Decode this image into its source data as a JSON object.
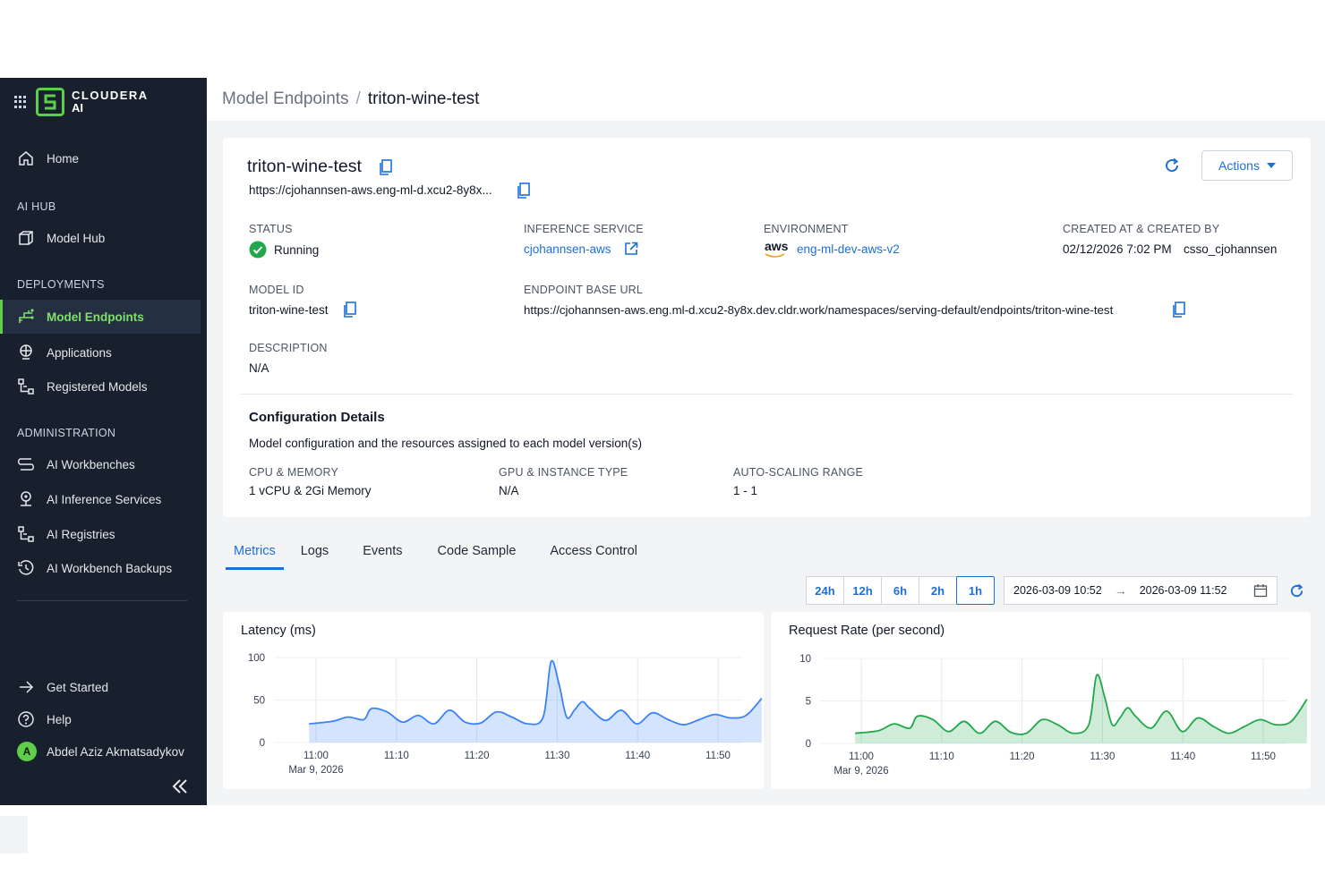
{
  "brand": {
    "line1": "CLOUDERA",
    "line2": "AI"
  },
  "breadcrumb": {
    "parent": "Model Endpoints",
    "separator": "/",
    "current": "triton-wine-test"
  },
  "sidebar": {
    "home": "Home",
    "sections": {
      "ai_hub": "AI HUB",
      "deployments": "DEPLOYMENTS",
      "administration": "ADMINISTRATION"
    },
    "items": {
      "model_hub": "Model Hub",
      "model_endpoints": "Model Endpoints",
      "applications": "Applications",
      "registered_models": "Registered Models",
      "ai_workbenches": "AI Workbenches",
      "ai_inference_services": "AI Inference Services",
      "ai_registries": "AI Registries",
      "ai_workbench_backups": "AI Workbench Backups"
    },
    "footer": {
      "get_started": "Get Started",
      "help": "Help",
      "user_initial": "A",
      "user_name": "Abdel Aziz Akmatsadykov"
    }
  },
  "endpoint": {
    "name": "triton-wine-test",
    "url_short": "https://cjohannsen-aws.eng-ml-d.xcu2-8y8x...",
    "actions_label": "Actions",
    "status_label": "STATUS",
    "status_value": "Running",
    "inference_label": "INFERENCE SERVICE",
    "inference_value": "cjohannsen-aws",
    "environment_label": "ENVIRONMENT",
    "environment_provider": "aws",
    "environment_value": "eng-ml-dev-aws-v2",
    "created_label": "CREATED AT & CREATED BY",
    "created_at": "02/12/2026 7:02 PM",
    "created_by": "csso_cjohannsen",
    "model_id_label": "MODEL ID",
    "model_id_value": "triton-wine-test",
    "base_url_label": "ENDPOINT BASE URL",
    "base_url_value": "https://cjohannsen-aws.eng.ml-d.xcu2-8y8x.dev.cldr.work/namespaces/serving-default/endpoints/triton-wine-test",
    "description_label": "DESCRIPTION",
    "description_value": "N/A"
  },
  "config": {
    "title": "Configuration Details",
    "subtitle": "Model configuration and the resources assigned to each model version(s)",
    "cpu_label": "CPU & MEMORY",
    "cpu_value": "1 vCPU & 2Gi Memory",
    "gpu_label": "GPU & INSTANCE TYPE",
    "gpu_value": "N/A",
    "scaling_label": "AUTO-SCALING RANGE",
    "scaling_value": "1 - 1"
  },
  "tabs": [
    "Metrics",
    "Logs",
    "Events",
    "Code Sample",
    "Access Control"
  ],
  "range": {
    "buttons": [
      "24h",
      "12h",
      "6h",
      "2h",
      "1h"
    ],
    "selected": "1h",
    "start": "2026-03-09 10:52",
    "arrow": "→",
    "end": "2026-03-09 11:52"
  },
  "colors": {
    "accent": "#1d6fd8",
    "brand_green": "#5dcf4a",
    "latency_line": "#3b82f6",
    "request_line": "#22a84a"
  },
  "chart_data": [
    {
      "type": "area",
      "title": "Latency (ms)",
      "ylim": [
        0,
        100
      ],
      "yticks": [
        0,
        50,
        100
      ],
      "xticks": [
        "11:00",
        "11:10",
        "11:20",
        "11:30",
        "11:40",
        "11:50"
      ],
      "x_sublabel": "Mar 9, 2026",
      "x_minutes": [
        0,
        3,
        5,
        7,
        8,
        10,
        12,
        14,
        16,
        18,
        20,
        22,
        24,
        26,
        28,
        30,
        31,
        32,
        33,
        34,
        35,
        36,
        38,
        40,
        42,
        44,
        46,
        48,
        50,
        52,
        54,
        56,
        58
      ],
      "values": [
        22,
        25,
        30,
        27,
        40,
        36,
        24,
        32,
        22,
        38,
        24,
        23,
        36,
        30,
        22,
        30,
        95,
        70,
        30,
        38,
        48,
        40,
        26,
        38,
        22,
        35,
        27,
        21,
        27,
        33,
        29,
        32,
        52
      ],
      "color": "#3b82f6"
    },
    {
      "type": "area",
      "title": "Request Rate (per second)",
      "ylim": [
        0,
        10
      ],
      "yticks": [
        0,
        5,
        10
      ],
      "xticks": [
        "11:00",
        "11:10",
        "11:20",
        "11:30",
        "11:40",
        "11:50"
      ],
      "x_sublabel": "Mar 9, 2026",
      "x_minutes": [
        0,
        3,
        5,
        7,
        8,
        10,
        12,
        14,
        16,
        18,
        20,
        22,
        24,
        26,
        28,
        30,
        31,
        32,
        33,
        34,
        35,
        36,
        38,
        40,
        42,
        44,
        46,
        48,
        50,
        52,
        54,
        56,
        58
      ],
      "values": [
        1.2,
        1.5,
        2.3,
        1.8,
        3.2,
        2.8,
        1.4,
        2.6,
        1.2,
        2.6,
        1.3,
        1.2,
        2.8,
        2.2,
        1.2,
        2.2,
        8.0,
        5.6,
        2.2,
        3.0,
        4.2,
        3.2,
        1.8,
        3.8,
        1.4,
        3.0,
        2.0,
        1.2,
        2.0,
        2.8,
        2.2,
        2.6,
        5.2
      ],
      "color": "#22a84a"
    }
  ]
}
